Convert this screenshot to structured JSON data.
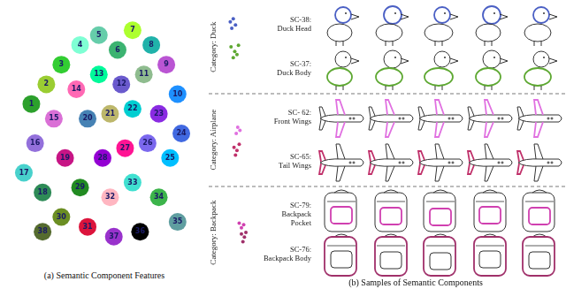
{
  "chart_data": [
    {
      "type": "scatter",
      "xlim": [
        0,
        100
      ],
      "ylim": [
        0,
        100
      ],
      "tick_labels": false,
      "grid": false,
      "marker": "circle",
      "series": [
        {
          "name": "1",
          "color": "#2ca02c",
          "x": [
            12
          ],
          "y": [
            62
          ]
        },
        {
          "name": "2",
          "color": "#9acd32",
          "x": [
            20
          ],
          "y": [
            70
          ]
        },
        {
          "name": "3",
          "color": "#32cd32",
          "x": [
            28
          ],
          "y": [
            78
          ]
        },
        {
          "name": "4",
          "color": "#7fffd4",
          "x": [
            38
          ],
          "y": [
            86
          ]
        },
        {
          "name": "5",
          "color": "#66cdaa",
          "x": [
            48
          ],
          "y": [
            90
          ]
        },
        {
          "name": "6",
          "color": "#3cb371",
          "x": [
            58
          ],
          "y": [
            84
          ]
        },
        {
          "name": "7",
          "color": "#adff2f",
          "x": [
            66
          ],
          "y": [
            92
          ]
        },
        {
          "name": "8",
          "color": "#20b2aa",
          "x": [
            76
          ],
          "y": [
            86
          ]
        },
        {
          "name": "9",
          "color": "#ba55d3",
          "x": [
            84
          ],
          "y": [
            78
          ]
        },
        {
          "name": "10",
          "color": "#1e90ff",
          "x": [
            90
          ],
          "y": [
            66
          ]
        },
        {
          "name": "11",
          "color": "#8fbc8f",
          "x": [
            72
          ],
          "y": [
            74
          ]
        },
        {
          "name": "12",
          "color": "#6a5acd",
          "x": [
            60
          ],
          "y": [
            70
          ]
        },
        {
          "name": "13",
          "color": "#00fa9a",
          "x": [
            48
          ],
          "y": [
            74
          ]
        },
        {
          "name": "14",
          "color": "#ff69b4",
          "x": [
            36
          ],
          "y": [
            68
          ]
        },
        {
          "name": "15",
          "color": "#da70d6",
          "x": [
            24
          ],
          "y": [
            56
          ]
        },
        {
          "name": "16",
          "color": "#9370db",
          "x": [
            14
          ],
          "y": [
            46
          ]
        },
        {
          "name": "17",
          "color": "#48d1cc",
          "x": [
            8
          ],
          "y": [
            34
          ]
        },
        {
          "name": "18",
          "color": "#2e8b57",
          "x": [
            18
          ],
          "y": [
            26
          ]
        },
        {
          "name": "19",
          "color": "#c71585",
          "x": [
            30
          ],
          "y": [
            40
          ]
        },
        {
          "name": "20",
          "color": "#4682b4",
          "x": [
            42
          ],
          "y": [
            56
          ]
        },
        {
          "name": "21",
          "color": "#bdb76b",
          "x": [
            54
          ],
          "y": [
            58
          ]
        },
        {
          "name": "22",
          "color": "#00ced1",
          "x": [
            66
          ],
          "y": [
            60
          ]
        },
        {
          "name": "23",
          "color": "#8a2be2",
          "x": [
            80
          ],
          "y": [
            58
          ]
        },
        {
          "name": "24",
          "color": "#4169e1",
          "x": [
            92
          ],
          "y": [
            50
          ]
        },
        {
          "name": "25",
          "color": "#00bfff",
          "x": [
            86
          ],
          "y": [
            40
          ]
        },
        {
          "name": "26",
          "color": "#7b68ee",
          "x": [
            74
          ],
          "y": [
            46
          ]
        },
        {
          "name": "27",
          "color": "#ff1493",
          "x": [
            62
          ],
          "y": [
            44
          ]
        },
        {
          "name": "28",
          "color": "#9400d3",
          "x": [
            50
          ],
          "y": [
            40
          ]
        },
        {
          "name": "29",
          "color": "#228b22",
          "x": [
            38
          ],
          "y": [
            28
          ]
        },
        {
          "name": "30",
          "color": "#6b8e23",
          "x": [
            28
          ],
          "y": [
            16
          ]
        },
        {
          "name": "31",
          "color": "#dc143c",
          "x": [
            42
          ],
          "y": [
            12
          ]
        },
        {
          "name": "32",
          "color": "#ffb6c1",
          "x": [
            54
          ],
          "y": [
            24
          ]
        },
        {
          "name": "33",
          "color": "#40e0d0",
          "x": [
            66
          ],
          "y": [
            30
          ]
        },
        {
          "name": "34",
          "color": "#3cb44b",
          "x": [
            80
          ],
          "y": [
            24
          ]
        },
        {
          "name": "35",
          "color": "#5f9ea0",
          "x": [
            90
          ],
          "y": [
            14
          ]
        },
        {
          "name": "36",
          "color": "#000000",
          "x": [
            70
          ],
          "y": [
            10
          ]
        },
        {
          "name": "37",
          "color": "#9932cc",
          "x": [
            56
          ],
          "y": [
            8
          ]
        },
        {
          "name": "38",
          "color": "#556b2f",
          "x": [
            18
          ],
          "y": [
            10
          ]
        }
      ]
    },
    {
      "type": "scatter",
      "xlim": [
        0,
        100
      ],
      "ylim": [
        0,
        100
      ],
      "tick_labels": false,
      "grid": false,
      "marker": "circle",
      "series": [
        {
          "color": "#4a5fc4",
          "x": [
            20,
            28,
            34,
            24
          ],
          "y": [
            82,
            86,
            78,
            74
          ]
        },
        {
          "color": "#5ea832",
          "x": [
            22,
            32,
            42,
            28,
            38
          ],
          "y": [
            50,
            44,
            52,
            36,
            40
          ]
        }
      ]
    },
    {
      "type": "scatter",
      "xlim": [
        0,
        100
      ],
      "ylim": [
        0,
        100
      ],
      "tick_labels": false,
      "grid": false,
      "marker": "circle",
      "series": [
        {
          "color": "#e070e0",
          "x": [
            40,
            46,
            36
          ],
          "y": [
            66,
            62,
            58
          ]
        },
        {
          "color": "#c0306a",
          "x": [
            30,
            38,
            44,
            34
          ],
          "y": [
            40,
            36,
            44,
            30
          ]
        }
      ]
    },
    {
      "type": "scatter",
      "xlim": [
        0,
        100
      ],
      "ylim": [
        0,
        100
      ],
      "tick_labels": false,
      "grid": false,
      "marker": "circle",
      "series": [
        {
          "color": "#d040b0",
          "x": [
            44,
            50,
            56
          ],
          "y": [
            62,
            56,
            60
          ]
        },
        {
          "color": "#a0306a",
          "x": [
            50,
            58,
            62,
            54
          ],
          "y": [
            48,
            44,
            50,
            38
          ]
        }
      ]
    }
  ],
  "panel_a": {
    "caption": "(a) Semantic Component Features"
  },
  "panel_b": {
    "caption": "(b) Samples of Semantic Components",
    "categories": [
      {
        "label": "Category: Duck",
        "components": [
          {
            "id": "SC-38:",
            "name": "Duck Head",
            "color": "#4a5fc4",
            "samples": 5
          },
          {
            "id": "SC-37:",
            "name": "Duck Body",
            "color": "#5ea832",
            "samples": 5
          }
        ]
      },
      {
        "label": "Category: Airplane",
        "components": [
          {
            "id": "SC- 62:",
            "name": "Front Wings",
            "color": "#e070e0",
            "samples": 5
          },
          {
            "id": "SC-65:",
            "name": "Tail Wings",
            "color": "#c0306a",
            "samples": 5
          }
        ]
      },
      {
        "label": "Category: Backpack",
        "components": [
          {
            "id": "SC-79:",
            "name": "Backpack Pocket",
            "color": "#d040b0",
            "samples": 5
          },
          {
            "id": "SC-76:",
            "name": "Backpack Body",
            "color": "#a0306a",
            "samples": 5
          }
        ]
      }
    ]
  }
}
